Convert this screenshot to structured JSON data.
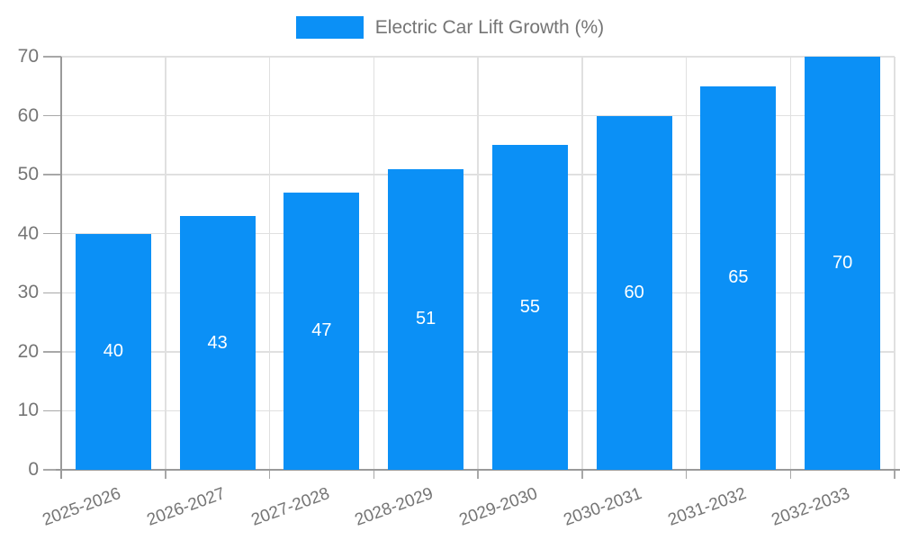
{
  "legend": {
    "label": "Electric Car Lift Growth (%)"
  },
  "chart_data": {
    "type": "bar",
    "title": "",
    "series_name": "Electric Car Lift Growth (%)",
    "categories": [
      "2025-2026",
      "2026-2027",
      "2027-2028",
      "2028-2029",
      "2029-2030",
      "2030-2031",
      "2031-2032",
      "2032-2033"
    ],
    "values": [
      40,
      43,
      47,
      51,
      55,
      60,
      65,
      70
    ],
    "xlabel": "",
    "ylabel": "",
    "ylim": [
      0,
      70
    ],
    "ytick_step": 10,
    "yticks": [
      0,
      10,
      20,
      30,
      40,
      50,
      60,
      70
    ],
    "grid": true,
    "legend_position": "top",
    "bar_labels_shown": true,
    "x_label_rotation_deg": -20,
    "colors": {
      "bar": "#0b90f6",
      "bar_label": "#ffffff",
      "axis_text": "#757575",
      "grid_line": "#e0e0e0",
      "axis_line": "#9a9a9a",
      "tick_line": "#a8a8a8",
      "background": "#ffffff"
    }
  }
}
